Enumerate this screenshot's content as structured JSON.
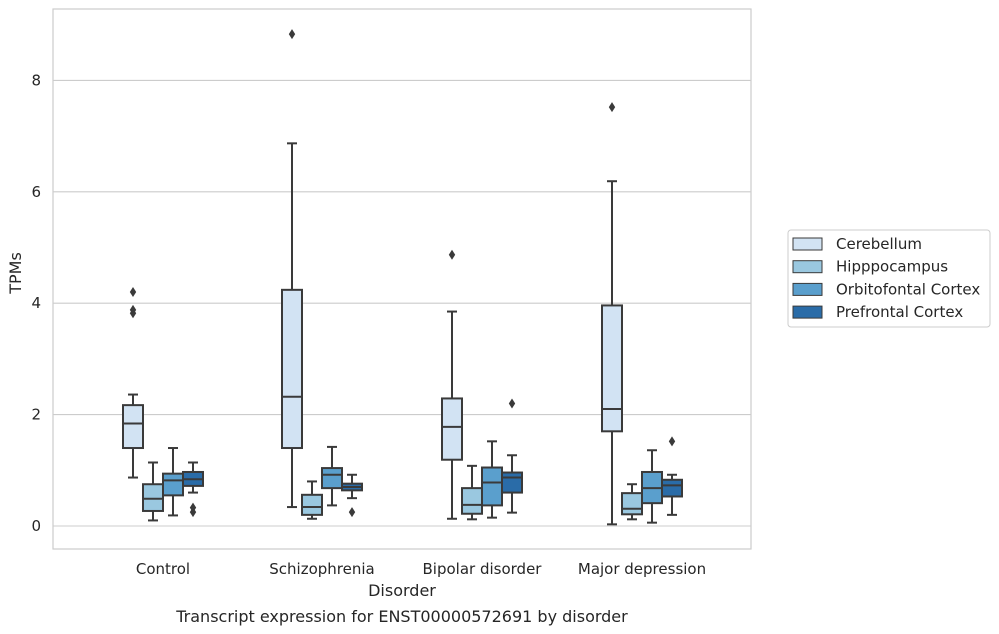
{
  "chart_data": {
    "type": "box",
    "xlabel": "Disorder",
    "ylabel": "TPMs",
    "caption": "Transcript expression for ENST00000572691 by disorder",
    "ylim": [
      -0.4,
      9.3
    ],
    "yticks": [
      "0",
      "2",
      "4",
      "6",
      "8"
    ],
    "grid": true,
    "legend_position": "right",
    "categories": [
      "Control",
      "Schizophrenia",
      "Bipolar disorder",
      "Major depression"
    ],
    "series": [
      {
        "name": "Cerebellum",
        "color": "#d2e3f3",
        "boxes": [
          {
            "whislo": 0.87,
            "q1": 1.4,
            "med": 1.84,
            "q3": 2.17,
            "whishi": 2.36,
            "fliers": [
              4.2,
              3.88,
              3.82
            ]
          },
          {
            "whislo": 0.34,
            "q1": 1.4,
            "med": 2.32,
            "q3": 4.24,
            "whishi": 6.87,
            "fliers": [
              8.83
            ]
          },
          {
            "whislo": 0.13,
            "q1": 1.19,
            "med": 1.78,
            "q3": 2.29,
            "whishi": 3.85,
            "fliers": [
              4.87
            ]
          },
          {
            "whislo": 0.03,
            "q1": 1.7,
            "med": 2.1,
            "q3": 3.96,
            "whishi": 6.19,
            "fliers": [
              7.52
            ]
          }
        ]
      },
      {
        "name": "Hipppocampus",
        "color": "#9ac8e0",
        "boxes": [
          {
            "whislo": 0.1,
            "q1": 0.27,
            "med": 0.49,
            "q3": 0.75,
            "whishi": 1.14,
            "fliers": []
          },
          {
            "whislo": 0.13,
            "q1": 0.2,
            "med": 0.34,
            "q3": 0.56,
            "whishi": 0.8,
            "fliers": []
          },
          {
            "whislo": 0.12,
            "q1": 0.22,
            "med": 0.38,
            "q3": 0.68,
            "whishi": 1.08,
            "fliers": []
          },
          {
            "whislo": 0.12,
            "q1": 0.21,
            "med": 0.31,
            "q3": 0.59,
            "whishi": 0.75,
            "fliers": []
          }
        ]
      },
      {
        "name": "Orbitofontal Cortex",
        "color": "#5a9fcd",
        "boxes": [
          {
            "whislo": 0.19,
            "q1": 0.55,
            "med": 0.82,
            "q3": 0.94,
            "whishi": 1.4,
            "fliers": []
          },
          {
            "whislo": 0.37,
            "q1": 0.68,
            "med": 0.92,
            "q3": 1.04,
            "whishi": 1.42,
            "fliers": []
          },
          {
            "whislo": 0.15,
            "q1": 0.37,
            "med": 0.78,
            "q3": 1.05,
            "whishi": 1.52,
            "fliers": []
          },
          {
            "whislo": 0.06,
            "q1": 0.41,
            "med": 0.68,
            "q3": 0.97,
            "whishi": 1.36,
            "fliers": []
          }
        ]
      },
      {
        "name": "Prefrontal Cortex",
        "color": "#2a6ca8",
        "boxes": [
          {
            "whislo": 0.6,
            "q1": 0.72,
            "med": 0.84,
            "q3": 0.97,
            "whishi": 1.14,
            "fliers": [
              0.33,
              0.25
            ]
          },
          {
            "whislo": 0.5,
            "q1": 0.64,
            "med": 0.7,
            "q3": 0.76,
            "whishi": 0.92,
            "fliers": [
              0.25
            ]
          },
          {
            "whislo": 0.24,
            "q1": 0.6,
            "med": 0.87,
            "q3": 0.96,
            "whishi": 1.27,
            "fliers": [
              2.2
            ]
          },
          {
            "whislo": 0.2,
            "q1": 0.53,
            "med": 0.73,
            "q3": 0.83,
            "whishi": 0.92,
            "fliers": [
              1.52
            ]
          }
        ]
      }
    ]
  }
}
